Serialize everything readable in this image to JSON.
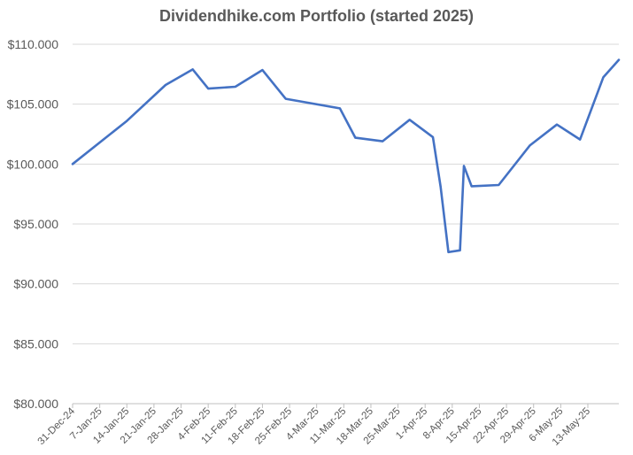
{
  "chart_data": {
    "type": "line",
    "title": "Dividendhike.com Portfolio (started 2025)",
    "xlabel": "",
    "ylabel": "",
    "ylim": [
      80000,
      110000
    ],
    "y_ticks": [
      80000,
      85000,
      90000,
      95000,
      100000,
      105000,
      110000
    ],
    "y_tick_labels": [
      "$80.000",
      "$85.000",
      "$90.000",
      "$95.000",
      "$100.000",
      "$105.000",
      "$110.000"
    ],
    "x_range": [
      "2024-12-31",
      "2025-05-21"
    ],
    "x_ticks": [
      "2024-12-31",
      "2025-01-07",
      "2025-01-14",
      "2025-01-21",
      "2025-01-28",
      "2025-02-04",
      "2025-02-11",
      "2025-02-18",
      "2025-02-25",
      "2025-03-04",
      "2025-03-11",
      "2025-03-18",
      "2025-03-25",
      "2025-04-01",
      "2025-04-08",
      "2025-04-15",
      "2025-04-22",
      "2025-04-29",
      "2025-05-06",
      "2025-05-13"
    ],
    "x_tick_labels": [
      "31-Dec-24",
      "7-Jan-25",
      "14-Jan-25",
      "21-Jan-25",
      "28-Jan-25",
      "4-Feb-25",
      "11-Feb-25",
      "18-Feb-25",
      "25-Feb-25",
      "4-Mar-25",
      "11-Mar-25",
      "18-Mar-25",
      "25-Mar-25",
      "1-Apr-25",
      "8-Apr-25",
      "15-Apr-25",
      "22-Apr-25",
      "29-Apr-25",
      "6-May-25",
      "13-May-25"
    ],
    "grid": true,
    "legend": "none",
    "series": [
      {
        "color": "#4472C4",
        "points": [
          {
            "x": "2024-12-31",
            "y": 100000
          },
          {
            "x": "2025-01-14",
            "y": 103600
          },
          {
            "x": "2025-01-24",
            "y": 106600
          },
          {
            "x": "2025-01-31",
            "y": 107900
          },
          {
            "x": "2025-02-04",
            "y": 106300
          },
          {
            "x": "2025-02-11",
            "y": 106450
          },
          {
            "x": "2025-02-18",
            "y": 107850
          },
          {
            "x": "2025-02-24",
            "y": 105450
          },
          {
            "x": "2025-03-10",
            "y": 104650
          },
          {
            "x": "2025-03-14",
            "y": 102200
          },
          {
            "x": "2025-03-21",
            "y": 101900
          },
          {
            "x": "2025-03-28",
            "y": 103700
          },
          {
            "x": "2025-04-03",
            "y": 102250
          },
          {
            "x": "2025-04-05",
            "y": 98100
          },
          {
            "x": "2025-04-07",
            "y": 92650
          },
          {
            "x": "2025-04-10",
            "y": 92800
          },
          {
            "x": "2025-04-11",
            "y": 99850
          },
          {
            "x": "2025-04-13",
            "y": 98150
          },
          {
            "x": "2025-04-20",
            "y": 98250
          },
          {
            "x": "2025-04-28",
            "y": 101550
          },
          {
            "x": "2025-05-05",
            "y": 103300
          },
          {
            "x": "2025-05-11",
            "y": 102050
          },
          {
            "x": "2025-05-17",
            "y": 107250
          },
          {
            "x": "2025-05-21",
            "y": 108700
          }
        ]
      }
    ]
  }
}
